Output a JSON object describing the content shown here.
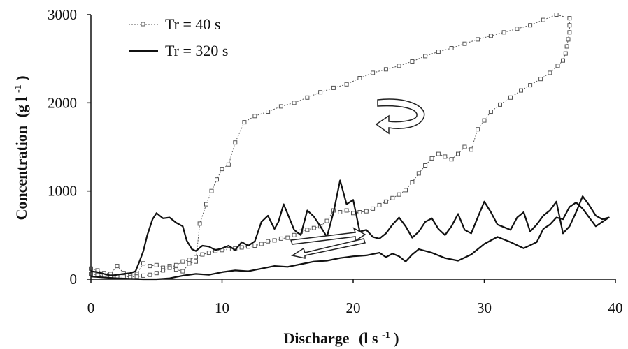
{
  "chart_data": {
    "type": "line",
    "title": "",
    "xlabel": {
      "main": "Discharge",
      "unit_base": "(l s",
      "unit_sup": "-1",
      "unit_close": ")"
    },
    "ylabel": {
      "main": "Concentration",
      "unit_base": "(g l",
      "unit_sup": "-1",
      "unit_close": ")"
    },
    "xlim": [
      0,
      40
    ],
    "ylim": [
      0,
      3000
    ],
    "xticks": [
      "0",
      "10",
      "20",
      "30",
      "40"
    ],
    "yticks": [
      "0",
      "1000",
      "2000",
      "3000"
    ],
    "grid": false,
    "legend_position": "top-left",
    "series": [
      {
        "name": "Tr = 40 s",
        "style": "dotted-line-square-markers",
        "color": "#555555",
        "points": [
          [
            0,
            120
          ],
          [
            0.5,
            100
          ],
          [
            1,
            70
          ],
          [
            1.5,
            60
          ],
          [
            2,
            150
          ],
          [
            2.5,
            70
          ],
          [
            3,
            50
          ],
          [
            3.5,
            60
          ],
          [
            4,
            180
          ],
          [
            4.5,
            150
          ],
          [
            5,
            160
          ],
          [
            5.5,
            130
          ],
          [
            6,
            150
          ],
          [
            6.5,
            110
          ],
          [
            7,
            90
          ],
          [
            7.5,
            180
          ],
          [
            8,
            200
          ],
          [
            8.3,
            630
          ],
          [
            8.8,
            850
          ],
          [
            9.2,
            1000
          ],
          [
            9.6,
            1130
          ],
          [
            10,
            1250
          ],
          [
            10.5,
            1300
          ],
          [
            11,
            1550
          ],
          [
            11.7,
            1780
          ],
          [
            12.5,
            1850
          ],
          [
            13.5,
            1900
          ],
          [
            14.5,
            1960
          ],
          [
            15.5,
            2000
          ],
          [
            16.5,
            2060
          ],
          [
            17.5,
            2120
          ],
          [
            18.5,
            2170
          ],
          [
            19.5,
            2210
          ],
          [
            20.5,
            2280
          ],
          [
            21.5,
            2340
          ],
          [
            22.5,
            2380
          ],
          [
            23.5,
            2420
          ],
          [
            24.5,
            2470
          ],
          [
            25.5,
            2530
          ],
          [
            26.5,
            2580
          ],
          [
            27.5,
            2620
          ],
          [
            28.5,
            2670
          ],
          [
            29.5,
            2720
          ],
          [
            30.5,
            2760
          ],
          [
            31.5,
            2800
          ],
          [
            32.5,
            2840
          ],
          [
            33.5,
            2880
          ],
          [
            34.5,
            2940
          ],
          [
            35.5,
            3000
          ],
          [
            36.5,
            2960
          ],
          [
            36.5,
            2880
          ],
          [
            36.5,
            2800
          ],
          [
            36.4,
            2720
          ],
          [
            36.3,
            2640
          ],
          [
            36.2,
            2560
          ],
          [
            36,
            2480
          ],
          [
            35.6,
            2420
          ],
          [
            35,
            2340
          ],
          [
            34.3,
            2270
          ],
          [
            33.5,
            2200
          ],
          [
            32.8,
            2140
          ],
          [
            32,
            2060
          ],
          [
            31.2,
            1980
          ],
          [
            30.5,
            1900
          ],
          [
            30,
            1800
          ],
          [
            29.5,
            1700
          ],
          [
            29,
            1470
          ],
          [
            28.5,
            1500
          ],
          [
            28,
            1420
          ],
          [
            27.5,
            1360
          ],
          [
            27,
            1390
          ],
          [
            26.5,
            1420
          ],
          [
            26,
            1370
          ],
          [
            25.5,
            1290
          ],
          [
            25,
            1200
          ],
          [
            24.5,
            1100
          ],
          [
            24,
            1010
          ],
          [
            23.5,
            960
          ],
          [
            23,
            920
          ],
          [
            22.5,
            880
          ],
          [
            22,
            840
          ],
          [
            21.5,
            800
          ],
          [
            21,
            770
          ],
          [
            20.5,
            760
          ],
          [
            20,
            750
          ],
          [
            19.5,
            780
          ],
          [
            19,
            760
          ],
          [
            18.5,
            780
          ],
          [
            18,
            660
          ],
          [
            17.5,
            600
          ],
          [
            17,
            580
          ],
          [
            16.5,
            560
          ],
          [
            16,
            540
          ],
          [
            15.5,
            500
          ],
          [
            15,
            470
          ],
          [
            14.5,
            460
          ],
          [
            14,
            440
          ],
          [
            13.5,
            430
          ],
          [
            13,
            400
          ],
          [
            12.5,
            380
          ],
          [
            12,
            370
          ],
          [
            11.5,
            360
          ],
          [
            11,
            350
          ],
          [
            10.5,
            340
          ],
          [
            10,
            330
          ],
          [
            9.5,
            320
          ],
          [
            9,
            300
          ],
          [
            8.5,
            280
          ],
          [
            8,
            250
          ],
          [
            7.5,
            220
          ],
          [
            7,
            200
          ],
          [
            6.5,
            160
          ],
          [
            6,
            130
          ],
          [
            5.5,
            100
          ],
          [
            5,
            70
          ],
          [
            4.5,
            50
          ],
          [
            4,
            40
          ],
          [
            3.5,
            30
          ],
          [
            3,
            25
          ],
          [
            2.5,
            30
          ],
          [
            2,
            35
          ],
          [
            1.5,
            30
          ],
          [
            1,
            40
          ],
          [
            0.5,
            50
          ],
          [
            0,
            60
          ]
        ]
      },
      {
        "name": "Tr = 320 s",
        "style": "solid-line",
        "color": "#111111",
        "points": [
          [
            0,
            30
          ],
          [
            1,
            20
          ],
          [
            2,
            10
          ],
          [
            3,
            5
          ],
          [
            4,
            0
          ],
          [
            5,
            0
          ],
          [
            6,
            10
          ],
          [
            7,
            40
          ],
          [
            8,
            60
          ],
          [
            9,
            50
          ],
          [
            10,
            80
          ],
          [
            11,
            100
          ],
          [
            12,
            90
          ],
          [
            13,
            120
          ],
          [
            14,
            150
          ],
          [
            15,
            140
          ],
          [
            16,
            170
          ],
          [
            17,
            200
          ],
          [
            18,
            210
          ],
          [
            19,
            240
          ],
          [
            20,
            260
          ],
          [
            21,
            270
          ],
          [
            22,
            300
          ],
          [
            22.5,
            250
          ],
          [
            23,
            290
          ],
          [
            23.5,
            260
          ],
          [
            24,
            200
          ],
          [
            24.5,
            280
          ],
          [
            25,
            340
          ],
          [
            26,
            300
          ],
          [
            27,
            240
          ],
          [
            28,
            210
          ],
          [
            29,
            280
          ],
          [
            30,
            400
          ],
          [
            31,
            480
          ],
          [
            32,
            420
          ],
          [
            33,
            350
          ],
          [
            34,
            420
          ],
          [
            34.5,
            570
          ],
          [
            35,
            620
          ],
          [
            35.5,
            700
          ],
          [
            36,
            680
          ],
          [
            36.5,
            820
          ],
          [
            37,
            870
          ],
          [
            37.5,
            800
          ],
          [
            38,
            700
          ],
          [
            38.5,
            600
          ],
          [
            39,
            650
          ],
          [
            39.5,
            700
          ],
          [
            39,
            680
          ],
          [
            38.5,
            720
          ],
          [
            38,
            840
          ],
          [
            37.5,
            940
          ],
          [
            37,
            760
          ],
          [
            36.5,
            600
          ],
          [
            36,
            520
          ],
          [
            35.5,
            880
          ],
          [
            35,
            780
          ],
          [
            34.5,
            720
          ],
          [
            34,
            620
          ],
          [
            33.5,
            540
          ],
          [
            33,
            760
          ],
          [
            32.5,
            700
          ],
          [
            32,
            560
          ],
          [
            31,
            620
          ],
          [
            30.5,
            760
          ],
          [
            30,
            880
          ],
          [
            29.5,
            700
          ],
          [
            29,
            520
          ],
          [
            28.5,
            560
          ],
          [
            28,
            740
          ],
          [
            27.5,
            600
          ],
          [
            27,
            500
          ],
          [
            26.5,
            570
          ],
          [
            26,
            690
          ],
          [
            25.5,
            650
          ],
          [
            25,
            540
          ],
          [
            24.5,
            470
          ],
          [
            24,
            600
          ],
          [
            23.5,
            700
          ],
          [
            23,
            620
          ],
          [
            22.5,
            520
          ],
          [
            22,
            460
          ],
          [
            21.5,
            480
          ],
          [
            21,
            560
          ],
          [
            20.5,
            540
          ],
          [
            20,
            900
          ],
          [
            19.5,
            850
          ],
          [
            19,
            1120
          ],
          [
            18.5,
            760
          ],
          [
            18,
            480
          ],
          [
            17.5,
            600
          ],
          [
            17,
            710
          ],
          [
            16.5,
            780
          ],
          [
            16,
            500
          ],
          [
            15.5,
            560
          ],
          [
            15,
            740
          ],
          [
            14.7,
            850
          ],
          [
            14.3,
            650
          ],
          [
            14,
            570
          ],
          [
            13.5,
            720
          ],
          [
            13,
            650
          ],
          [
            12.5,
            430
          ],
          [
            12,
            380
          ],
          [
            11.5,
            420
          ],
          [
            11,
            330
          ],
          [
            10.5,
            380
          ],
          [
            10,
            350
          ],
          [
            9.5,
            330
          ],
          [
            9,
            370
          ],
          [
            8.5,
            380
          ],
          [
            8,
            320
          ],
          [
            7.7,
            340
          ],
          [
            7.3,
            440
          ],
          [
            7,
            600
          ],
          [
            6.5,
            640
          ],
          [
            6,
            700
          ],
          [
            5.5,
            690
          ],
          [
            5,
            750
          ],
          [
            4.7,
            680
          ],
          [
            4.3,
            500
          ],
          [
            4,
            320
          ],
          [
            3.7,
            200
          ],
          [
            3.4,
            90
          ],
          [
            3,
            70
          ],
          [
            2.5,
            60
          ],
          [
            2,
            50
          ],
          [
            1.5,
            40
          ],
          [
            1,
            60
          ],
          [
            0.5,
            80
          ],
          [
            0,
            90
          ]
        ]
      }
    ]
  }
}
